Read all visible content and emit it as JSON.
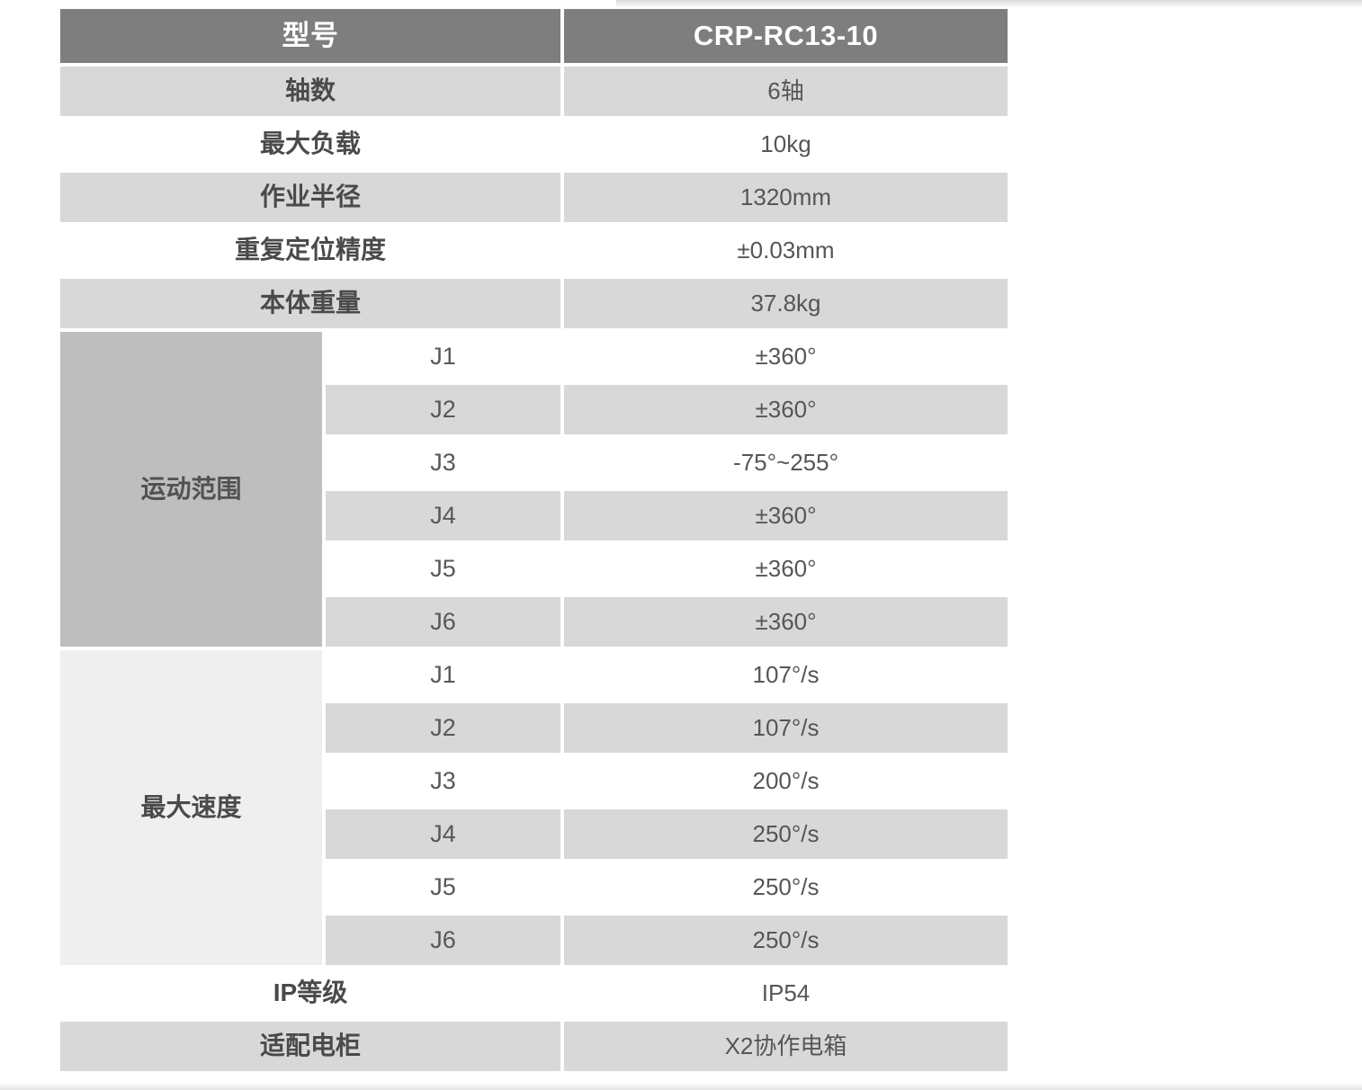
{
  "table": {
    "header": {
      "model_label": "型号",
      "model_value": "CRP-RC13-10"
    },
    "specs": [
      {
        "label": "轴数",
        "value": "6轴"
      },
      {
        "label": "最大负载",
        "value": "10kg"
      },
      {
        "label": "作业半径",
        "value": "1320mm"
      },
      {
        "label": "重复定位精度",
        "value": "±0.03mm"
      },
      {
        "label": "本体重量",
        "value": "37.8kg"
      }
    ],
    "groups": [
      {
        "label": "运动范围",
        "rows": [
          {
            "joint": "J1",
            "value": "±360°"
          },
          {
            "joint": "J2",
            "value": "±360°"
          },
          {
            "joint": "J3",
            "value": "-75°~255°"
          },
          {
            "joint": "J4",
            "value": "±360°"
          },
          {
            "joint": "J5",
            "value": "±360°"
          },
          {
            "joint": "J6",
            "value": "±360°"
          }
        ]
      },
      {
        "label": "最大速度",
        "rows": [
          {
            "joint": "J1",
            "value": "107°/s"
          },
          {
            "joint": "J2",
            "value": "107°/s"
          },
          {
            "joint": "J3",
            "value": "200°/s"
          },
          {
            "joint": "J4",
            "value": "250°/s"
          },
          {
            "joint": "J5",
            "value": "250°/s"
          },
          {
            "joint": "J6",
            "value": "250°/s"
          }
        ]
      }
    ],
    "footer_specs": [
      {
        "label": "IP等级",
        "value": "IP54"
      },
      {
        "label": "适配电柜",
        "value": "X2协作电箱"
      }
    ],
    "colors": {
      "header_bg": "#7e7e7e",
      "header_text": "#ffffff",
      "row_gray": "#d8d8d8",
      "row_white": "#ffffff",
      "group_range_bg": "#bebebe",
      "group_speed_bg": "#efefef",
      "label_text": "#4a4a4a",
      "value_text": "#565656"
    }
  }
}
